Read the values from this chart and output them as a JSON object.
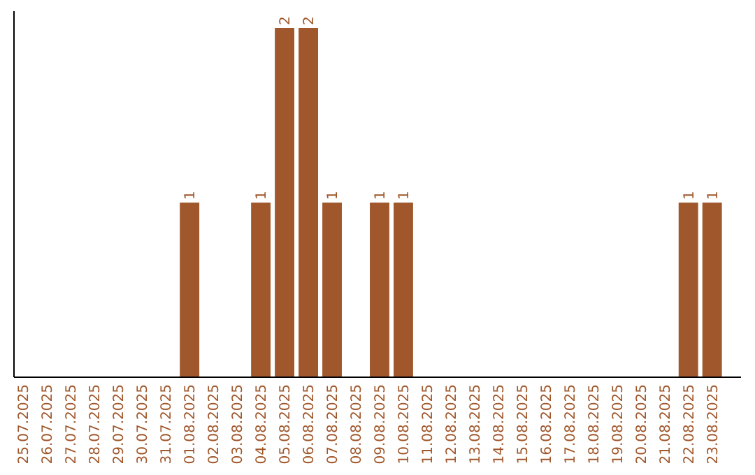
{
  "chart_data": {
    "type": "bar",
    "categories": [
      "25.07.2025",
      "26.07.2025",
      "27.07.2025",
      "28.07.2025",
      "29.07.2025",
      "30.07.2025",
      "31.07.2025",
      "01.08.2025",
      "02.08.2025",
      "03.08.2025",
      "04.08.2025",
      "05.08.2025",
      "06.08.2025",
      "07.08.2025",
      "08.08.2025",
      "09.08.2025",
      "10.08.2025",
      "11.08.2025",
      "12.08.2025",
      "13.08.2025",
      "14.08.2025",
      "15.08.2025",
      "16.08.2025",
      "17.08.2025",
      "18.08.2025",
      "19.08.2025",
      "20.08.2025",
      "21.08.2025",
      "22.08.2025",
      "23.08.2025"
    ],
    "values": [
      0,
      0,
      0,
      0,
      0,
      0,
      0,
      1,
      0,
      0,
      1,
      2,
      2,
      1,
      0,
      1,
      1,
      0,
      0,
      0,
      0,
      0,
      0,
      0,
      0,
      0,
      0,
      0,
      1,
      1
    ],
    "value_labels": [
      null,
      null,
      null,
      null,
      null,
      null,
      null,
      "1",
      null,
      null,
      "1",
      "2",
      "2",
      "1",
      null,
      "1",
      "1",
      null,
      null,
      null,
      null,
      null,
      null,
      null,
      null,
      null,
      null,
      null,
      "1",
      "1"
    ],
    "color": "#a0572b"
  }
}
